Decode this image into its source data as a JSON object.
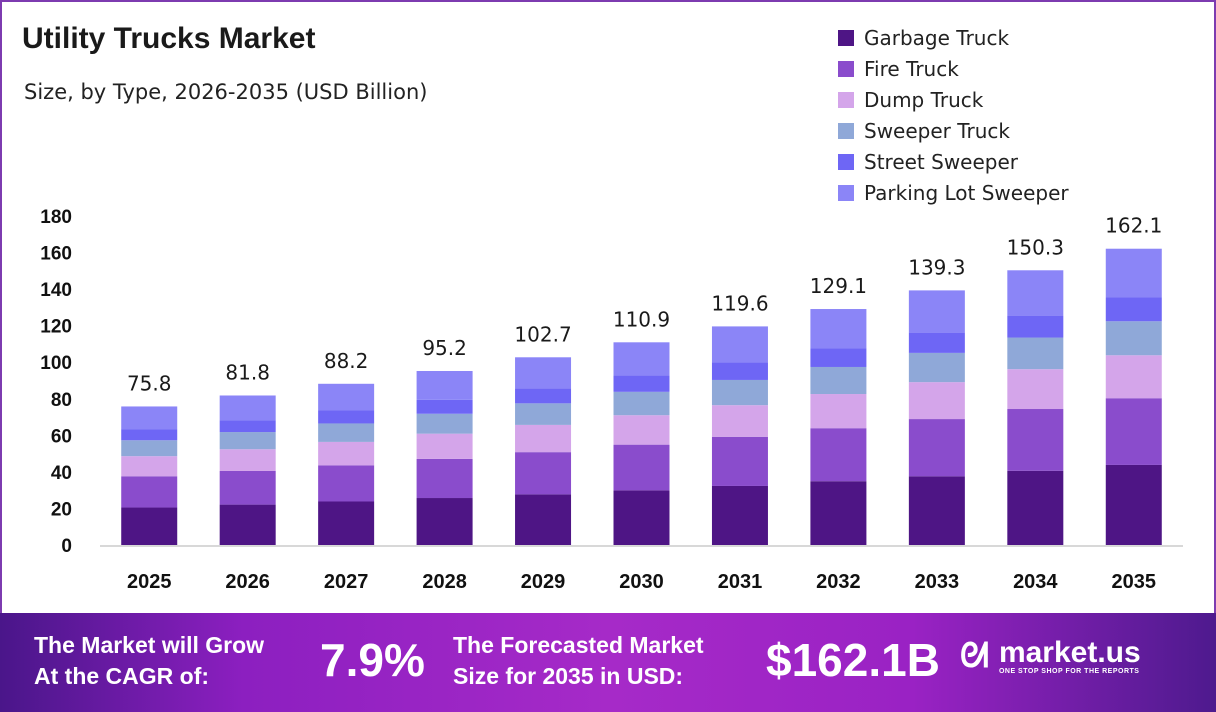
{
  "header": {
    "title": "Utility Trucks Market",
    "subtitle": "Size, by Type, 2026-2035 (USD Billion)"
  },
  "chart_data": {
    "type": "bar",
    "stacked": true,
    "categories": [
      "2025",
      "2026",
      "2027",
      "2028",
      "2029",
      "2030",
      "2031",
      "2032",
      "2033",
      "2034",
      "2035"
    ],
    "totals": [
      "75.8",
      "81.8",
      "88.2",
      "95.2",
      "102.7",
      "110.9",
      "119.6",
      "129.1",
      "139.3",
      "150.3",
      "162.1"
    ],
    "series": [
      {
        "name": "Garbage Truck",
        "color": "#4e1585",
        "values": [
          20.5,
          22.1,
          23.8,
          25.7,
          27.7,
          29.9,
          32.3,
          34.9,
          37.6,
          40.6,
          43.8
        ]
      },
      {
        "name": "Fire Truck",
        "color": "#8a4ccc",
        "values": [
          17.1,
          18.4,
          19.8,
          21.4,
          23.1,
          25.0,
          26.9,
          29.0,
          31.3,
          33.8,
          36.5
        ]
      },
      {
        "name": "Dump Truck",
        "color": "#d4a5ea",
        "values": [
          11.0,
          11.9,
          12.8,
          13.8,
          14.9,
          16.1,
          17.3,
          18.7,
          20.2,
          21.8,
          23.5
        ]
      },
      {
        "name": "Sweeper Truck",
        "color": "#8fa8d8",
        "values": [
          8.7,
          9.4,
          10.1,
          10.9,
          11.8,
          12.8,
          13.8,
          14.8,
          16.0,
          17.3,
          18.6
        ]
      },
      {
        "name": "Street Sweeper",
        "color": "#6e66f5",
        "values": [
          6.1,
          6.5,
          7.1,
          7.6,
          8.2,
          8.9,
          9.6,
          10.3,
          11.1,
          12.0,
          13.0
        ]
      },
      {
        "name": "Parking Lot Sweeper",
        "color": "#8b85f7",
        "values": [
          12.4,
          13.5,
          14.6,
          15.8,
          17.0,
          18.2,
          19.7,
          21.4,
          23.1,
          24.8,
          26.7
        ]
      }
    ],
    "yticks": [
      "0",
      "20",
      "40",
      "60",
      "80",
      "100",
      "120",
      "140",
      "160",
      "180"
    ],
    "ylim": [
      0,
      180
    ],
    "grid": false,
    "legend": "top-right"
  },
  "footer": {
    "cagr_label_1": "The Market will Grow",
    "cagr_label_2": "At the CAGR of:",
    "cagr_value": "7.9%",
    "forecast_label_1": "The Forecasted Market",
    "forecast_label_2": "Size for 2035 in USD:",
    "forecast_value": "$162.1B",
    "logo_text": "market.us",
    "logo_tagline": "ONE STOP SHOP FOR THE REPORTS"
  }
}
